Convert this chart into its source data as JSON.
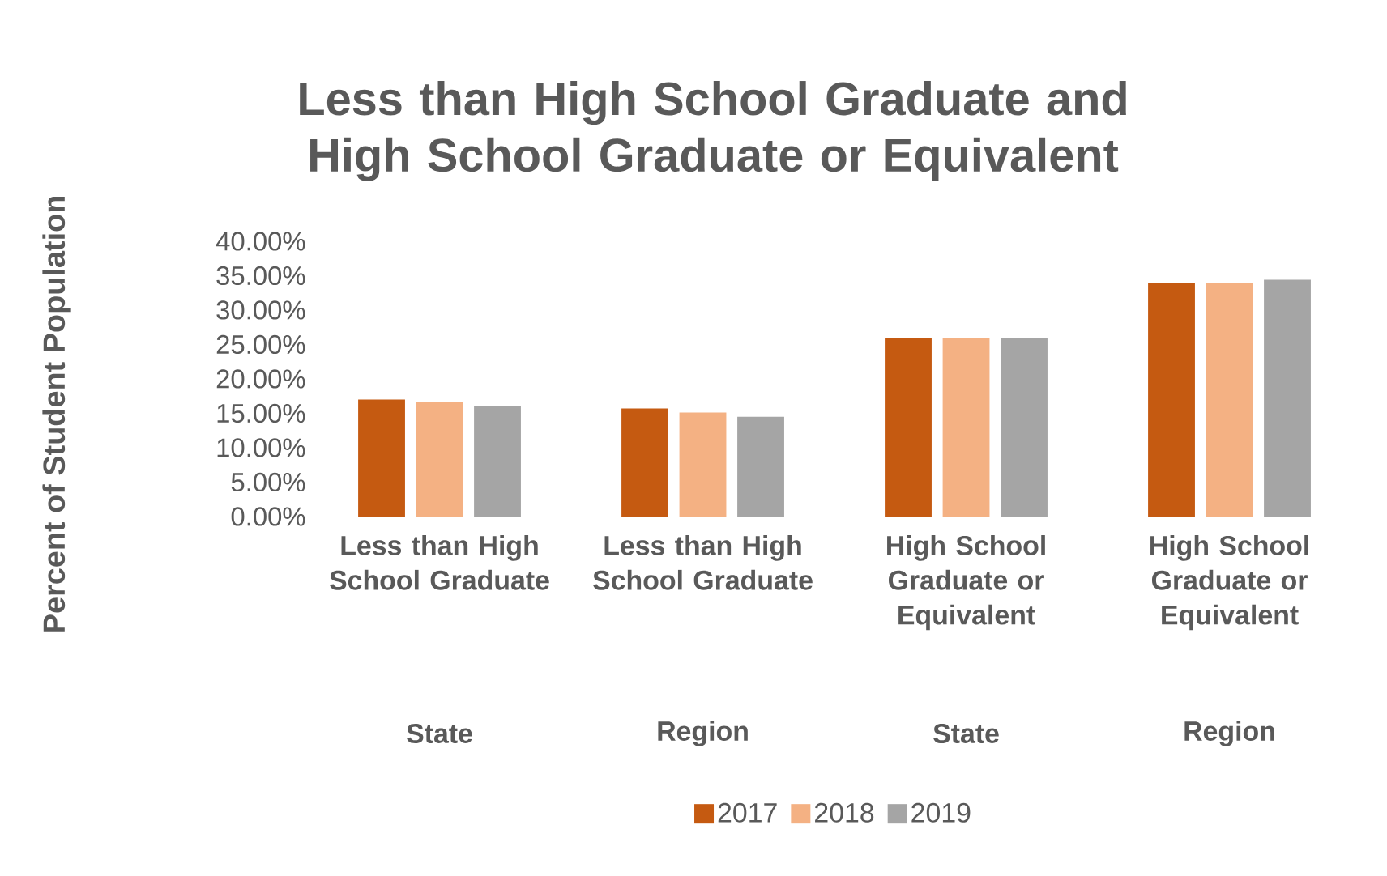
{
  "chart_data": {
    "type": "bar",
    "title": "Less than High School Graduate and High School Graduate or Equivalent",
    "ylabel": "Percent of Student Population",
    "categories": [
      "Less than High School Graduate",
      "Less than High School Graduate",
      "High School Graduate or Equivalent",
      "High School Graduate or Equivalent"
    ],
    "annotations": [
      "State",
      "Region",
      "State",
      "Region"
    ],
    "series": [
      {
        "name": "2017",
        "color": "#c55a11",
        "values": [
          17.0,
          15.7,
          25.9,
          34.0
        ]
      },
      {
        "name": "2018",
        "color": "#f4b183",
        "values": [
          16.6,
          15.1,
          25.9,
          34.0
        ]
      },
      {
        "name": "2019",
        "color": "#a5a5a5",
        "values": [
          16.0,
          14.5,
          26.0,
          34.4
        ]
      }
    ],
    "ylim": [
      0,
      40
    ],
    "yticks": [
      {
        "value": 0,
        "label": "0.00%"
      },
      {
        "value": 5,
        "label": "5.00%"
      },
      {
        "value": 10,
        "label": "10.00%"
      },
      {
        "value": 15,
        "label": "15.00%"
      },
      {
        "value": 20,
        "label": "20.00%"
      },
      {
        "value": 25,
        "label": "25.00%"
      },
      {
        "value": 30,
        "label": "30.00%"
      },
      {
        "value": 35,
        "label": "35.00%"
      },
      {
        "value": 40,
        "label": "40.00%"
      }
    ],
    "grid": false,
    "legend": "bottom"
  }
}
